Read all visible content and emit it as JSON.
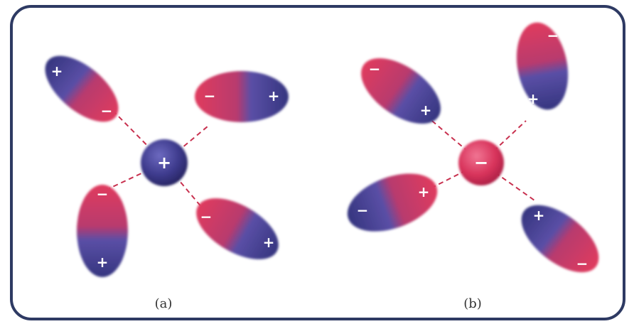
{
  "colors": {
    "positive": "#3d3a8c",
    "negative": "#d8335b",
    "border": "#2e3a63",
    "bond": "#c8314f"
  },
  "panels": [
    {
      "caption": "(a)",
      "ion_sign": "+",
      "dipoles": [
        {
          "near_sign": "−",
          "far_sign": "+"
        },
        {
          "near_sign": "−",
          "far_sign": "+"
        },
        {
          "near_sign": "−",
          "far_sign": "+"
        },
        {
          "near_sign": "−",
          "far_sign": "+"
        }
      ]
    },
    {
      "caption": "(b)",
      "ion_sign": "−",
      "dipoles": [
        {
          "near_sign": "+",
          "far_sign": "−"
        },
        {
          "near_sign": "+",
          "far_sign": "−"
        },
        {
          "near_sign": "+",
          "far_sign": "−"
        },
        {
          "near_sign": "+",
          "far_sign": "−"
        }
      ]
    }
  ]
}
